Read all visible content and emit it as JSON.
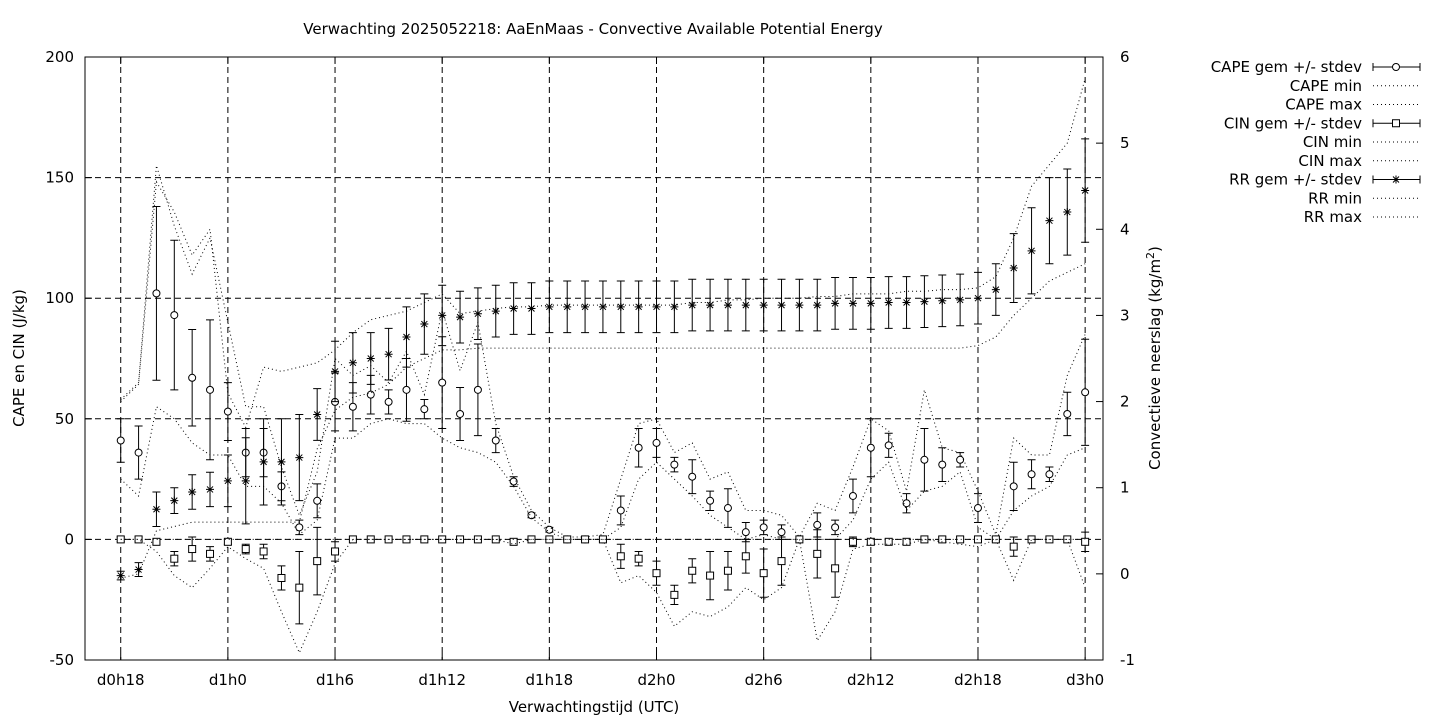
{
  "chart_data": {
    "type": "line",
    "title": "Verwachting 2025052218: AaEnMaas - Convective Available Potential Energy",
    "xlabel": "Verwachtingstijd (UTC)",
    "ylabel": "CAPE en CIN (J/kg)",
    "y2label": "Convectieve neerslag (kg/m",
    "y2label_sup": "2",
    "y2label_end": ")",
    "x_unit": "hours since d0h0",
    "xlim": [
      16,
      73
    ],
    "ylim": [
      -50,
      200
    ],
    "y2lim": [
      -1,
      6
    ],
    "grid": true,
    "legend_position": "right-outside",
    "x_ticks": [
      {
        "x": 18,
        "label": "d0h18"
      },
      {
        "x": 24,
        "label": "d1h0"
      },
      {
        "x": 30,
        "label": "d1h6"
      },
      {
        "x": 36,
        "label": "d1h12"
      },
      {
        "x": 42,
        "label": "d1h18"
      },
      {
        "x": 48,
        "label": "d2h0"
      },
      {
        "x": 54,
        "label": "d2h6"
      },
      {
        "x": 60,
        "label": "d2h12"
      },
      {
        "x": 66,
        "label": "d2h18"
      },
      {
        "x": 72,
        "label": "d3h0"
      }
    ],
    "y_ticks": [
      "-50",
      "0",
      "50",
      "100",
      "150",
      "200"
    ],
    "y2_ticks": [
      "-1",
      "0",
      "1",
      "2",
      "3",
      "4",
      "5",
      "6"
    ],
    "legend": [
      "CAPE gem +/- stdev",
      "CAPE min",
      "CAPE max",
      "CIN gem +/- stdev",
      "CIN min",
      "CIN max",
      "RR gem +/- stdev",
      "RR min",
      "RR max"
    ],
    "series": [
      {
        "name": "CAPE gem +/- stdev",
        "axis": "y",
        "marker": "circle",
        "x": [
          18,
          19,
          20,
          21,
          22,
          23,
          24,
          25,
          26,
          27,
          28,
          29,
          30,
          31,
          32,
          33,
          34,
          35,
          36,
          37,
          38,
          39,
          40,
          41,
          42,
          43,
          44,
          45,
          46,
          47,
          48,
          49,
          50,
          51,
          52,
          53,
          54,
          55,
          56,
          57,
          58,
          59,
          60,
          61,
          62,
          63,
          64,
          65,
          66,
          67,
          68,
          69,
          70,
          71,
          72
        ],
        "mean": [
          41,
          36,
          102,
          93,
          67,
          62,
          53,
          36,
          36,
          22,
          5,
          16,
          57,
          55,
          60,
          57,
          62,
          54,
          65,
          52,
          62,
          41,
          24,
          10,
          4,
          0,
          0,
          0,
          12,
          38,
          40,
          31,
          26,
          16,
          13,
          3,
          5,
          3,
          0,
          6,
          5,
          18,
          38,
          39,
          15,
          33,
          31,
          33,
          13,
          0,
          22,
          27,
          27,
          52,
          61
        ],
        "stdev": [
          9,
          11,
          36,
          31,
          20,
          29,
          12,
          10,
          10,
          6,
          3,
          7,
          12,
          10,
          8,
          5,
          13,
          4,
          19,
          11,
          19,
          5,
          2,
          1,
          1,
          0,
          0,
          1,
          6,
          8,
          6,
          3,
          7,
          4,
          8,
          4,
          3,
          3,
          0,
          5,
          3,
          7,
          12,
          5,
          4,
          13,
          7,
          3,
          6,
          1,
          10,
          6,
          3,
          9,
          22
        ]
      },
      {
        "name": "CAPE min",
        "axis": "y",
        "x": [
          18,
          19,
          20,
          21,
          22,
          23,
          24,
          25,
          26,
          27,
          28,
          29,
          30,
          31,
          32,
          33,
          34,
          35,
          36,
          37,
          38,
          39,
          40,
          41,
          42,
          43,
          44,
          45,
          46,
          47,
          48,
          49,
          50,
          51,
          52,
          53,
          54,
          55,
          56,
          57,
          58,
          59,
          60,
          61,
          62,
          63,
          64,
          65,
          66,
          67,
          68,
          69,
          70,
          71,
          72
        ],
        "values": [
          25,
          18,
          55,
          50,
          40,
          35,
          35,
          22,
          22,
          15,
          2,
          8,
          42,
          42,
          48,
          50,
          48,
          48,
          42,
          38,
          36,
          32,
          22,
          9,
          3,
          0,
          0,
          0,
          5,
          25,
          32,
          25,
          18,
          10,
          5,
          0,
          2,
          0,
          0,
          0,
          0,
          8,
          25,
          32,
          12,
          20,
          22,
          28,
          5,
          0,
          12,
          18,
          22,
          35,
          38
        ]
      },
      {
        "name": "CAPE max",
        "axis": "y",
        "x": [
          18,
          19,
          20,
          21,
          22,
          23,
          24,
          25,
          26,
          27,
          28,
          29,
          30,
          31,
          32,
          33,
          34,
          35,
          36,
          37,
          38,
          39,
          40,
          41,
          42,
          43,
          44,
          45,
          46,
          47,
          48,
          49,
          50,
          51,
          52,
          53,
          54,
          55,
          56,
          57,
          58,
          59,
          60,
          61,
          62,
          63,
          64,
          65,
          66,
          67,
          68,
          69,
          70,
          71,
          72
        ],
        "values": [
          58,
          65,
          155,
          130,
          110,
          125,
          90,
          55,
          55,
          30,
          10,
          28,
          75,
          68,
          72,
          65,
          78,
          60,
          95,
          70,
          90,
          48,
          26,
          12,
          5,
          1,
          1,
          2,
          25,
          48,
          50,
          36,
          40,
          25,
          28,
          12,
          12,
          10,
          1,
          15,
          12,
          30,
          50,
          45,
          20,
          62,
          38,
          36,
          20,
          2,
          42,
          35,
          35,
          68,
          85
        ]
      },
      {
        "name": "CIN gem +/- stdev",
        "axis": "y",
        "marker": "square",
        "x": [
          18,
          19,
          20,
          21,
          22,
          23,
          24,
          25,
          26,
          27,
          28,
          29,
          30,
          31,
          32,
          33,
          34,
          35,
          36,
          37,
          38,
          39,
          40,
          41,
          42,
          43,
          44,
          45,
          46,
          47,
          48,
          49,
          50,
          51,
          52,
          53,
          54,
          55,
          56,
          57,
          58,
          59,
          60,
          61,
          62,
          63,
          64,
          65,
          66,
          67,
          68,
          69,
          70,
          71,
          72
        ],
        "mean": [
          0,
          0,
          -1,
          -8,
          -4,
          -6,
          -1,
          -4,
          -5,
          -16,
          -20,
          -9,
          -5,
          0,
          0,
          0,
          0,
          0,
          0,
          0,
          0,
          0,
          -1,
          0,
          0,
          0,
          0,
          0,
          -7,
          -8,
          -14,
          -23,
          -13,
          -15,
          -13,
          -7,
          -14,
          -9,
          0,
          -6,
          -12,
          -1,
          -1,
          -1,
          -1,
          0,
          0,
          0,
          0,
          0,
          -3,
          0,
          0,
          0,
          -1
        ],
        "stdev": [
          1,
          1,
          1,
          3,
          5,
          3,
          1,
          2,
          3,
          5,
          15,
          14,
          4,
          0,
          0,
          0,
          0,
          0,
          0,
          0,
          0,
          0,
          0,
          0,
          0,
          0,
          0,
          0,
          5,
          3,
          5,
          4,
          5,
          10,
          8,
          7,
          10,
          10,
          0,
          10,
          12,
          2,
          1,
          1,
          1,
          0,
          1,
          1,
          1,
          0,
          4,
          0,
          0,
          0,
          4
        ]
      },
      {
        "name": "CIN min",
        "axis": "y",
        "x": [
          18,
          19,
          20,
          21,
          22,
          23,
          24,
          25,
          26,
          27,
          28,
          29,
          30,
          31,
          32,
          33,
          34,
          35,
          36,
          37,
          38,
          39,
          40,
          41,
          42,
          43,
          44,
          45,
          46,
          47,
          48,
          49,
          50,
          51,
          52,
          53,
          54,
          55,
          56,
          57,
          58,
          59,
          60,
          61,
          62,
          63,
          64,
          65,
          66,
          67,
          68,
          69,
          70,
          71,
          72
        ],
        "values": [
          0,
          0,
          -5,
          -15,
          -20,
          -12,
          -3,
          -8,
          -12,
          -30,
          -47,
          -30,
          -10,
          0,
          0,
          0,
          0,
          0,
          0,
          0,
          0,
          0,
          -2,
          0,
          0,
          0,
          0,
          0,
          -18,
          -15,
          -22,
          -36,
          -30,
          -32,
          -28,
          -20,
          -25,
          -20,
          0,
          -42,
          -30,
          -4,
          -2,
          -2,
          -2,
          0,
          -1,
          -2,
          -3,
          0,
          -17,
          0,
          0,
          0,
          -20
        ]
      },
      {
        "name": "CIN max",
        "axis": "y",
        "x": [
          18,
          19,
          20,
          21,
          22,
          23,
          24,
          25,
          26,
          27,
          28,
          29,
          30,
          31,
          32,
          33,
          34,
          35,
          36,
          37,
          38,
          39,
          40,
          41,
          42,
          43,
          44,
          45,
          46,
          47,
          48,
          49,
          50,
          51,
          52,
          53,
          54,
          55,
          56,
          57,
          58,
          59,
          60,
          61,
          62,
          63,
          64,
          65,
          66,
          67,
          68,
          69,
          70,
          71,
          72
        ],
        "values": [
          0,
          0,
          0,
          0,
          0,
          0,
          0,
          0,
          0,
          0,
          0,
          0,
          0,
          0,
          0,
          0,
          0,
          0,
          0,
          0,
          0,
          0,
          0,
          0,
          0,
          0,
          0,
          0,
          0,
          0,
          0,
          0,
          0,
          0,
          0,
          0,
          0,
          0,
          0,
          0,
          0,
          0,
          0,
          0,
          0,
          0,
          0,
          0,
          0,
          0,
          0,
          0,
          0,
          0,
          0
        ]
      },
      {
        "name": "RR gem +/- stdev",
        "axis": "y2",
        "marker": "star",
        "x": [
          18,
          19,
          20,
          21,
          22,
          23,
          24,
          25,
          26,
          27,
          28,
          29,
          30,
          31,
          32,
          33,
          34,
          35,
          36,
          37,
          38,
          39,
          40,
          41,
          42,
          43,
          44,
          45,
          46,
          47,
          48,
          49,
          50,
          51,
          52,
          53,
          54,
          55,
          56,
          57,
          58,
          59,
          60,
          61,
          62,
          63,
          64,
          65,
          66,
          67,
          68,
          69,
          70,
          71,
          72
        ],
        "mean": [
          -0.02,
          0.05,
          0.75,
          0.85,
          0.95,
          0.98,
          1.08,
          1.08,
          1.3,
          1.3,
          1.35,
          1.85,
          2.35,
          2.45,
          2.5,
          2.55,
          2.75,
          2.9,
          3.0,
          2.98,
          3.02,
          3.05,
          3.08,
          3.08,
          3.1,
          3.1,
          3.1,
          3.1,
          3.1,
          3.1,
          3.1,
          3.1,
          3.12,
          3.12,
          3.12,
          3.12,
          3.12,
          3.12,
          3.12,
          3.12,
          3.14,
          3.14,
          3.14,
          3.15,
          3.15,
          3.16,
          3.17,
          3.18,
          3.2,
          3.3,
          3.55,
          3.75,
          4.1,
          4.2,
          4.45
        ],
        "stdev": [
          0.05,
          0.08,
          0.2,
          0.15,
          0.2,
          0.2,
          0.3,
          0.5,
          0.5,
          0.5,
          0.5,
          0.3,
          0.35,
          0.35,
          0.3,
          0.3,
          0.35,
          0.35,
          0.35,
          0.3,
          0.3,
          0.3,
          0.3,
          0.3,
          0.3,
          0.3,
          0.3,
          0.3,
          0.3,
          0.3,
          0.3,
          0.3,
          0.3,
          0.3,
          0.3,
          0.3,
          0.3,
          0.3,
          0.3,
          0.3,
          0.3,
          0.3,
          0.3,
          0.3,
          0.3,
          0.3,
          0.3,
          0.3,
          0.3,
          0.3,
          0.4,
          0.5,
          0.5,
          0.5,
          0.6
        ]
      },
      {
        "name": "RR min",
        "axis": "y2",
        "x": [
          18,
          19,
          20,
          21,
          22,
          23,
          24,
          25,
          26,
          27,
          28,
          29,
          30,
          31,
          32,
          33,
          34,
          35,
          36,
          37,
          38,
          39,
          40,
          41,
          42,
          43,
          44,
          45,
          46,
          47,
          48,
          49,
          50,
          51,
          52,
          53,
          54,
          55,
          56,
          57,
          58,
          59,
          60,
          61,
          62,
          63,
          64,
          65,
          66,
          67,
          68,
          69,
          70,
          71,
          72
        ],
        "values": [
          -0.05,
          0,
          0.5,
          0.55,
          0.6,
          0.6,
          0.6,
          0.6,
          0.6,
          0.6,
          0.6,
          1.45,
          1.9,
          2.05,
          2.1,
          2.2,
          2.4,
          2.5,
          2.6,
          2.6,
          2.62,
          2.62,
          2.62,
          2.62,
          2.62,
          2.62,
          2.62,
          2.62,
          2.62,
          2.62,
          2.62,
          2.62,
          2.62,
          2.62,
          2.62,
          2.62,
          2.62,
          2.62,
          2.62,
          2.62,
          2.62,
          2.62,
          2.62,
          2.62,
          2.62,
          2.62,
          2.62,
          2.62,
          2.65,
          2.75,
          3.0,
          3.2,
          3.4,
          3.5,
          3.6
        ]
      },
      {
        "name": "RR max",
        "axis": "y2",
        "x": [
          18,
          19,
          20,
          21,
          22,
          23,
          24,
          25,
          26,
          27,
          28,
          29,
          30,
          31,
          32,
          33,
          34,
          35,
          36,
          37,
          38,
          39,
          40,
          41,
          42,
          43,
          44,
          45,
          46,
          47,
          48,
          49,
          50,
          51,
          52,
          53,
          54,
          55,
          56,
          57,
          58,
          59,
          60,
          61,
          62,
          63,
          64,
          65,
          66,
          67,
          68,
          69,
          70,
          71,
          72
        ],
        "values": [
          2.0,
          2.2,
          4.55,
          4.2,
          3.7,
          4.0,
          2.1,
          1.7,
          2.4,
          2.35,
          2.4,
          2.45,
          2.6,
          2.8,
          2.95,
          3.0,
          3.05,
          3.15,
          3.25,
          3.02,
          3.05,
          3.08,
          3.1,
          3.1,
          3.12,
          3.12,
          3.12,
          3.12,
          3.12,
          3.12,
          3.12,
          3.12,
          3.15,
          3.15,
          3.18,
          3.18,
          3.2,
          3.2,
          3.2,
          3.22,
          3.22,
          3.25,
          3.25,
          3.25,
          3.28,
          3.28,
          3.3,
          3.3,
          3.32,
          3.45,
          3.9,
          4.5,
          4.75,
          5.0,
          5.75
        ]
      }
    ]
  }
}
